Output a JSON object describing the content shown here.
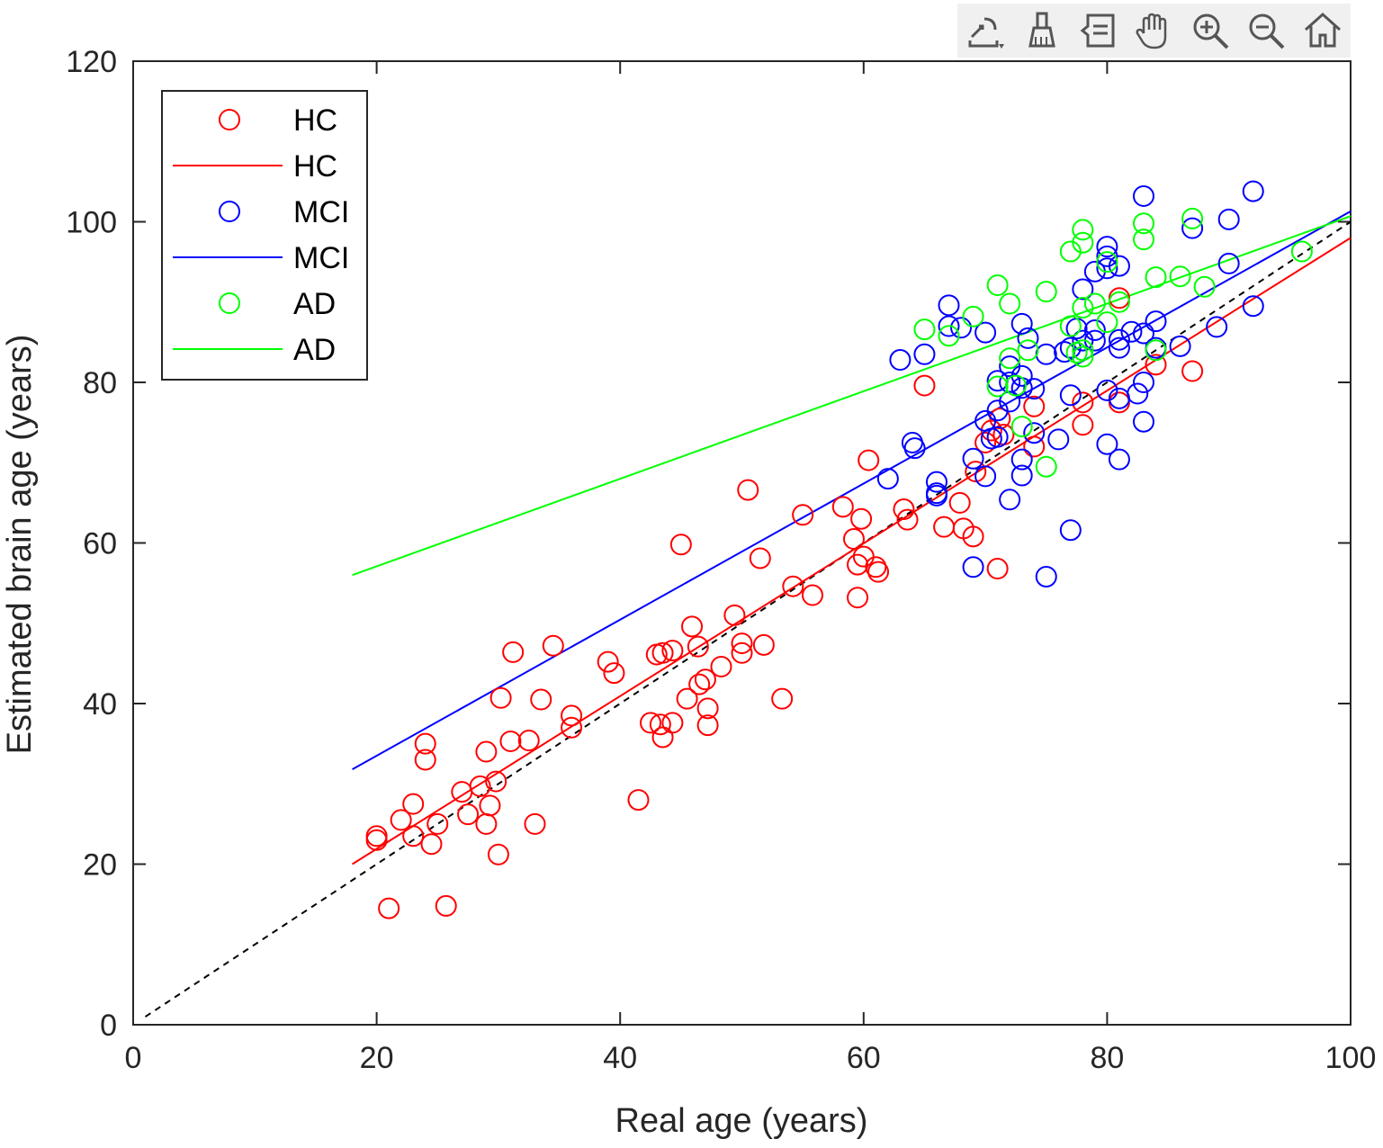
{
  "toolbar": {
    "tools": [
      {
        "name": "export-icon"
      },
      {
        "name": "brush-icon"
      },
      {
        "name": "datatip-icon"
      },
      {
        "name": "pan-hand-icon"
      },
      {
        "name": "zoom-in-icon"
      },
      {
        "name": "zoom-out-icon"
      },
      {
        "name": "home-icon"
      }
    ]
  },
  "chart_data": {
    "type": "scatter",
    "title": "",
    "xlabel": "Real age (years)",
    "ylabel": "Estimated brain age (years)",
    "xlim": [
      0,
      100
    ],
    "ylim": [
      0,
      120
    ],
    "xticks": [
      0,
      20,
      40,
      60,
      80,
      100
    ],
    "yticks": [
      0,
      20,
      40,
      60,
      80,
      100,
      120
    ],
    "grid": false,
    "legend_position": "top-left",
    "identity_line": {
      "style": "dashed",
      "color": "#000000",
      "x": [
        1,
        100
      ],
      "y": [
        1,
        100
      ]
    },
    "series": [
      {
        "name": "HC",
        "color": "#ff0000",
        "fit": {
          "x": [
            18,
            100
          ],
          "y": [
            20.0,
            98.0
          ]
        },
        "points": [
          [
            20,
            23.5
          ],
          [
            20,
            23
          ],
          [
            21,
            14.5
          ],
          [
            22,
            25.5
          ],
          [
            23,
            23.5
          ],
          [
            23,
            27.5
          ],
          [
            24,
            35
          ],
          [
            24,
            33
          ],
          [
            24.5,
            22.5
          ],
          [
            25,
            25
          ],
          [
            25.7,
            14.8
          ],
          [
            27,
            29
          ],
          [
            27.5,
            26.2
          ],
          [
            28.5,
            29.7
          ],
          [
            29,
            25
          ],
          [
            29,
            34
          ],
          [
            29.3,
            27.3
          ],
          [
            29.8,
            30.3
          ],
          [
            30,
            21.2
          ],
          [
            30.2,
            40.7
          ],
          [
            31,
            35.3
          ],
          [
            31.2,
            46.4
          ],
          [
            32.5,
            35.4
          ],
          [
            33,
            25
          ],
          [
            33.5,
            40.5
          ],
          [
            34.5,
            47.2
          ],
          [
            36,
            38.5
          ],
          [
            36,
            37
          ],
          [
            39,
            45.2
          ],
          [
            39.5,
            43.8
          ],
          [
            41.5,
            28
          ],
          [
            42.5,
            37.6
          ],
          [
            43,
            46.1
          ],
          [
            43.3,
            37.4
          ],
          [
            43.5,
            35.8
          ],
          [
            43.5,
            46.3
          ],
          [
            44.3,
            37.6
          ],
          [
            44.3,
            46.6
          ],
          [
            45,
            59.8
          ],
          [
            45.5,
            40.6
          ],
          [
            45.9,
            49.6
          ],
          [
            46.4,
            47.1
          ],
          [
            46.5,
            42.4
          ],
          [
            47,
            43
          ],
          [
            47.2,
            39.4
          ],
          [
            47.2,
            37.3
          ],
          [
            48.3,
            44.6
          ],
          [
            49.4,
            51
          ],
          [
            50,
            47.5
          ],
          [
            50,
            46.3
          ],
          [
            50.5,
            66.6
          ],
          [
            51.5,
            58.1
          ],
          [
            51.8,
            47.3
          ],
          [
            53.3,
            40.6
          ],
          [
            54.2,
            54.6
          ],
          [
            55,
            63.5
          ],
          [
            55.8,
            53.5
          ],
          [
            58.3,
            64.5
          ],
          [
            59.2,
            60.5
          ],
          [
            59.5,
            57.3
          ],
          [
            59.5,
            53.2
          ],
          [
            59.8,
            63
          ],
          [
            60,
            58.3
          ],
          [
            60.4,
            70.3
          ],
          [
            61,
            57
          ],
          [
            61.2,
            56.4
          ],
          [
            63.3,
            64.2
          ],
          [
            63.6,
            62.9
          ],
          [
            65,
            79.6
          ],
          [
            66.6,
            62
          ],
          [
            67.9,
            65
          ],
          [
            68.2,
            61.8
          ],
          [
            69,
            60.8
          ],
          [
            69.2,
            68.9
          ],
          [
            70,
            72.5
          ],
          [
            70.5,
            74
          ],
          [
            71,
            56.8
          ],
          [
            71.2,
            75.5
          ],
          [
            71.5,
            73.5
          ],
          [
            74,
            77
          ],
          [
            74,
            72
          ],
          [
            78,
            77.5
          ],
          [
            78,
            74.7
          ],
          [
            81,
            90.5
          ],
          [
            81,
            77.5
          ],
          [
            84,
            82.2
          ],
          [
            87,
            81.4
          ]
        ]
      },
      {
        "name": "MCI",
        "color": "#0000ff",
        "fit": {
          "x": [
            18,
            100
          ],
          "y": [
            31.8,
            101.3
          ]
        },
        "points": [
          [
            62,
            68
          ],
          [
            63,
            82.8
          ],
          [
            64,
            72.5
          ],
          [
            64.2,
            71.8
          ],
          [
            65,
            83.5
          ],
          [
            66,
            67.6
          ],
          [
            66,
            66.2
          ],
          [
            66,
            65.9
          ],
          [
            67,
            89.6
          ],
          [
            67,
            87
          ],
          [
            68,
            86.8
          ],
          [
            69,
            70.5
          ],
          [
            69,
            57
          ],
          [
            70,
            75.2
          ],
          [
            70,
            68.3
          ],
          [
            70,
            86.2
          ],
          [
            70.5,
            73
          ],
          [
            71,
            80.2
          ],
          [
            71,
            76.5
          ],
          [
            71,
            73.2
          ],
          [
            72,
            65.4
          ],
          [
            72,
            77.6
          ],
          [
            72,
            80
          ],
          [
            72,
            82
          ],
          [
            73,
            87.3
          ],
          [
            73,
            80.8
          ],
          [
            73,
            79.3
          ],
          [
            73,
            70.4
          ],
          [
            73,
            68.4
          ],
          [
            73.5,
            85.5
          ],
          [
            74,
            79.2
          ],
          [
            74,
            73.7
          ],
          [
            75,
            83.5
          ],
          [
            75,
            55.8
          ],
          [
            76,
            72.9
          ],
          [
            76.5,
            83.8
          ],
          [
            77,
            78.4
          ],
          [
            77,
            61.6
          ],
          [
            77,
            84.3
          ],
          [
            77.5,
            86.7
          ],
          [
            78,
            91.6
          ],
          [
            78,
            85.2
          ],
          [
            79,
            93.8
          ],
          [
            79,
            86.5
          ],
          [
            79,
            85.2
          ],
          [
            80,
            96.9
          ],
          [
            80,
            95.7
          ],
          [
            80,
            94.2
          ],
          [
            80,
            79
          ],
          [
            80,
            72.3
          ],
          [
            81,
            94.5
          ],
          [
            81,
            85.3
          ],
          [
            81,
            84.3
          ],
          [
            81,
            78
          ],
          [
            81,
            70.4
          ],
          [
            82,
            86.3
          ],
          [
            82.5,
            78.6
          ],
          [
            83,
            103.2
          ],
          [
            83,
            86.1
          ],
          [
            83,
            80
          ],
          [
            83,
            75.1
          ],
          [
            84,
            87.6
          ],
          [
            84,
            84.3
          ],
          [
            86,
            84.5
          ],
          [
            87,
            99.2
          ],
          [
            89,
            86.9
          ],
          [
            90,
            100.3
          ],
          [
            90,
            94.8
          ],
          [
            92,
            103.8
          ],
          [
            92,
            89.5
          ]
        ]
      },
      {
        "name": "AD",
        "color": "#00ff00",
        "fit": {
          "x": [
            18,
            100
          ],
          "y": [
            56.0,
            100.7
          ]
        },
        "points": [
          [
            65,
            86.6
          ],
          [
            67,
            85.8
          ],
          [
            69,
            88.2
          ],
          [
            71,
            92.1
          ],
          [
            71,
            79.5
          ],
          [
            72,
            89.8
          ],
          [
            72,
            83
          ],
          [
            72.5,
            79.6
          ],
          [
            73,
            74.5
          ],
          [
            73.5,
            84
          ],
          [
            75,
            91.3
          ],
          [
            75,
            69.5
          ],
          [
            77,
            96.3
          ],
          [
            77,
            87
          ],
          [
            77.5,
            83.7
          ],
          [
            78,
            99
          ],
          [
            78,
            97.4
          ],
          [
            78,
            89.3
          ],
          [
            78,
            84
          ],
          [
            78,
            83.2
          ],
          [
            79,
            89.8
          ],
          [
            80,
            95
          ],
          [
            80,
            87.5
          ],
          [
            81,
            90
          ],
          [
            83,
            99.8
          ],
          [
            83,
            97.8
          ],
          [
            84,
            93.1
          ],
          [
            84,
            84
          ],
          [
            86,
            93.2
          ],
          [
            87,
            100.4
          ],
          [
            88,
            91.9
          ],
          [
            96,
            96.3
          ]
        ]
      }
    ],
    "legend": [
      {
        "label": "HC",
        "marker": "circle",
        "color": "#ff0000"
      },
      {
        "label": "HC",
        "marker": "line",
        "color": "#ff0000"
      },
      {
        "label": "MCI",
        "marker": "circle",
        "color": "#0000ff"
      },
      {
        "label": "MCI",
        "marker": "line",
        "color": "#0000ff"
      },
      {
        "label": "AD",
        "marker": "circle",
        "color": "#00ff00"
      },
      {
        "label": "AD",
        "marker": "line",
        "color": "#00ff00"
      }
    ]
  }
}
